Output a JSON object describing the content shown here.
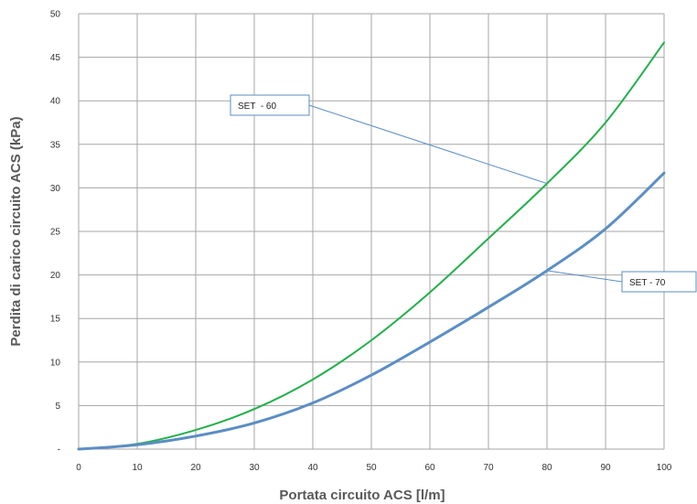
{
  "chart_data": {
    "type": "line",
    "title": "",
    "xlabel": "Portata circuito ACS [l/m]",
    "ylabel": "Perdita di carico circuito ACS (kPa)",
    "xlim": [
      0,
      100
    ],
    "ylim": [
      0,
      50
    ],
    "x_ticks": [
      "0",
      "10",
      "20",
      "30",
      "40",
      "50",
      "60",
      "70",
      "80",
      "90",
      "100"
    ],
    "y_ticks": [
      "-",
      "5",
      "10",
      "15",
      "20",
      "25",
      "30",
      "35",
      "40",
      "45",
      "50"
    ],
    "grid": true,
    "x": [
      0,
      10,
      20,
      30,
      40,
      50,
      60,
      70,
      80,
      90,
      100
    ],
    "series": [
      {
        "name": "SET  - 60",
        "color": "#22b04b",
        "values": [
          0,
          0.6,
          2.2,
          4.6,
          8.0,
          12.5,
          18.0,
          24.2,
          30.5,
          37.5,
          46.7
        ]
      },
      {
        "name": "SET - 70",
        "color": "#5b8ec4",
        "values": [
          0,
          0.5,
          1.5,
          3.0,
          5.3,
          8.5,
          12.3,
          16.3,
          20.5,
          25.3,
          31.7
        ]
      }
    ],
    "annotations": [
      {
        "text": "SET  - 60",
        "series": 0,
        "x": 80,
        "y": 30.5
      },
      {
        "text": "SET - 70",
        "series": 1,
        "x": 80,
        "y": 20.5
      }
    ]
  }
}
